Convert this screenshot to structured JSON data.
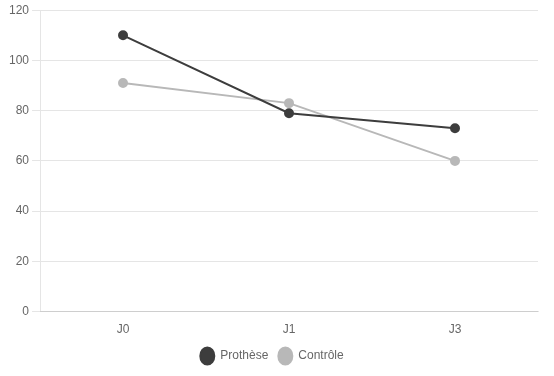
{
  "chart_data": {
    "type": "line",
    "categories": [
      "J0",
      "J1",
      "J3"
    ],
    "series": [
      {
        "name": "Prothèse",
        "color": "#3d3d3d",
        "marker": "circle",
        "values": [
          110,
          79,
          73
        ]
      },
      {
        "name": "Contrôle",
        "color": "#b8b8b8",
        "marker": "circle",
        "values": [
          91,
          83,
          60
        ]
      }
    ],
    "ylim": [
      0,
      120
    ],
    "yticks": [
      0,
      20,
      40,
      60,
      80,
      100,
      120
    ],
    "grid": "y",
    "legend": "bottom"
  }
}
